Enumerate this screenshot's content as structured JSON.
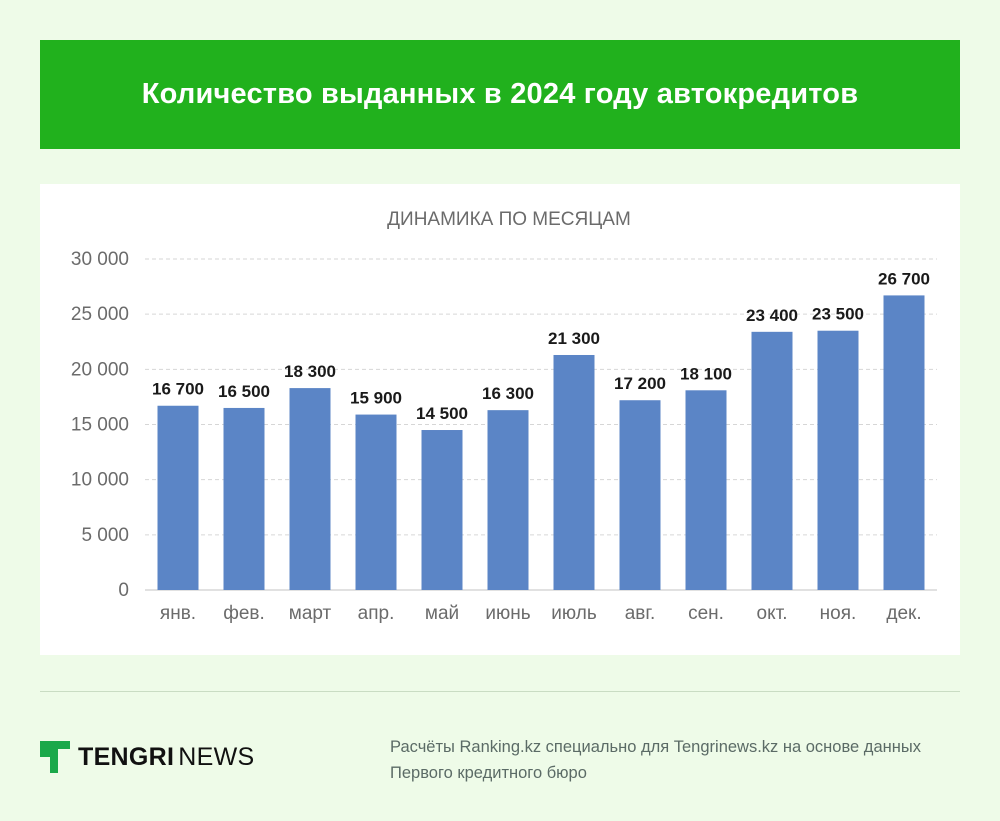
{
  "header": {
    "title": "Количество выданных в 2024 году автокредитов"
  },
  "chart_data": {
    "type": "bar",
    "title": "ДИНАМИКА ПО МЕСЯЦАМ",
    "categories": [
      "янв.",
      "фев.",
      "март",
      "апр.",
      "май",
      "июнь",
      "июль",
      "авг.",
      "сен.",
      "окт.",
      "ноя.",
      "дек."
    ],
    "values": [
      16700,
      16500,
      18300,
      15900,
      14500,
      16300,
      21300,
      17200,
      18100,
      23400,
      23500,
      26700
    ],
    "value_labels": [
      "16 700",
      "16 500",
      "18 300",
      "15 900",
      "14 500",
      "16 300",
      "21 300",
      "17 200",
      "18 100",
      "23 400",
      "23 500",
      "26 700"
    ],
    "yticks": [
      0,
      5000,
      10000,
      15000,
      20000,
      25000,
      30000
    ],
    "ytick_labels": [
      "0",
      "5 000",
      "10 000",
      "15 000",
      "20 000",
      "25 000",
      "30 000"
    ],
    "ylim": [
      0,
      30000
    ],
    "grid": "horizontal-dashed",
    "bar_color": "#5b85c6",
    "xlabel": "",
    "ylabel": ""
  },
  "footer": {
    "logo_bold": "TENGRI",
    "logo_regular": "NEWS",
    "source": "Расчёты Ranking.kz специально для Tengrinews.kz на основе данных Первого кредитного бюро"
  },
  "colors": {
    "banner": "#21b11d",
    "background": "#eefbe8",
    "logo_green": "#1aa84a"
  }
}
